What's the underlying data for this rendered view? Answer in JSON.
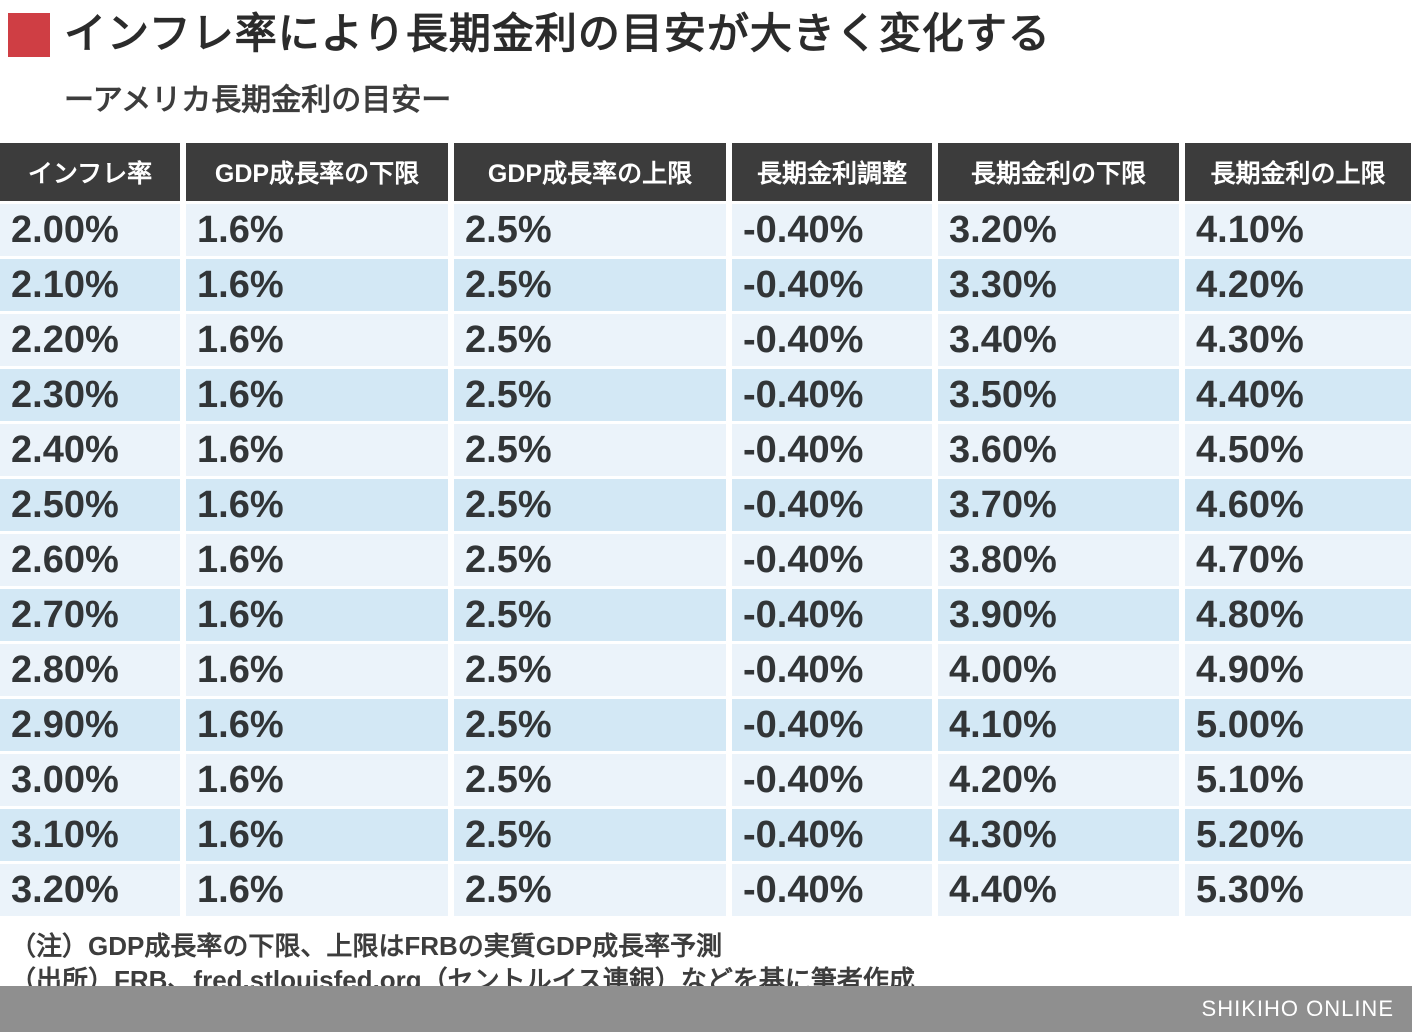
{
  "header": {
    "title": "インフレ率により長期金利の目安が大きく変化する",
    "subtitle": "ーアメリカ長期金利の目安ー"
  },
  "chart_data": {
    "type": "table",
    "title": "インフレ率により長期金利の目安が大きく変化する",
    "subtitle": "ーアメリカ長期金利の目安ー",
    "columns": [
      "インフレ率",
      "GDP成長率の下限",
      "GDP成長率の上限",
      "長期金利調整",
      "長期金利の下限",
      "長期金利の上限"
    ],
    "rows": [
      [
        "2.00%",
        "1.6%",
        "2.5%",
        "-0.40%",
        "3.20%",
        "4.10%"
      ],
      [
        "2.10%",
        "1.6%",
        "2.5%",
        "-0.40%",
        "3.30%",
        "4.20%"
      ],
      [
        "2.20%",
        "1.6%",
        "2.5%",
        "-0.40%",
        "3.40%",
        "4.30%"
      ],
      [
        "2.30%",
        "1.6%",
        "2.5%",
        "-0.40%",
        "3.50%",
        "4.40%"
      ],
      [
        "2.40%",
        "1.6%",
        "2.5%",
        "-0.40%",
        "3.60%",
        "4.50%"
      ],
      [
        "2.50%",
        "1.6%",
        "2.5%",
        "-0.40%",
        "3.70%",
        "4.60%"
      ],
      [
        "2.60%",
        "1.6%",
        "2.5%",
        "-0.40%",
        "3.80%",
        "4.70%"
      ],
      [
        "2.70%",
        "1.6%",
        "2.5%",
        "-0.40%",
        "3.90%",
        "4.80%"
      ],
      [
        "2.80%",
        "1.6%",
        "2.5%",
        "-0.40%",
        "4.00%",
        "4.90%"
      ],
      [
        "2.90%",
        "1.6%",
        "2.5%",
        "-0.40%",
        "4.10%",
        "5.00%"
      ],
      [
        "3.00%",
        "1.6%",
        "2.5%",
        "-0.40%",
        "4.20%",
        "5.10%"
      ],
      [
        "3.10%",
        "1.6%",
        "2.5%",
        "-0.40%",
        "4.30%",
        "5.20%"
      ],
      [
        "3.20%",
        "1.6%",
        "2.5%",
        "-0.40%",
        "4.40%",
        "5.30%"
      ]
    ]
  },
  "notes": [
    "（注）GDP成長率の下限、上限はFRBの実質GDP成長率予測",
    "（出所）FRB、fred.stlouisfed.org（セントルイス連銀）などを基に筆者作成"
  ],
  "footer": {
    "brand": "SHIKIHO ONLINE"
  },
  "colors": {
    "accent_red": "#cf3e44",
    "header_bg": "#3c3c3c",
    "header_text": "#ffffff",
    "row_light": "#ebf3fa",
    "row_dark": "#d3e8f5",
    "cell_text": "#323537",
    "footer_bar": "#8f8f8f",
    "footer_text": "#ffffff"
  }
}
